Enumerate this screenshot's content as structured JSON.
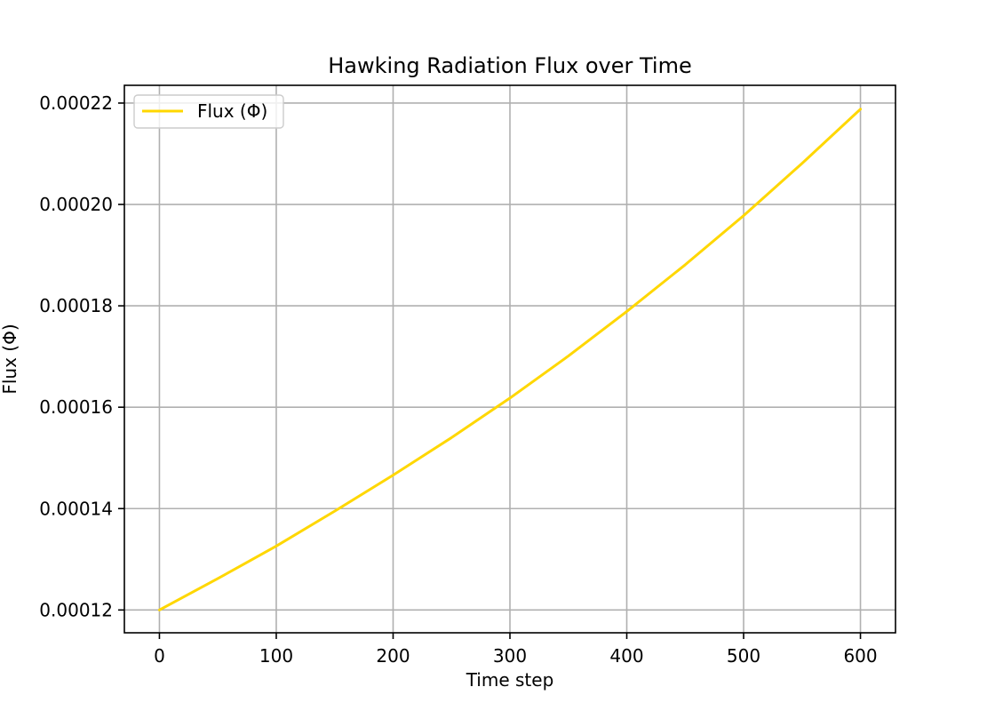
{
  "chart_data": {
    "type": "line",
    "title": "Hawking Radiation Flux over Time",
    "xlabel": "Time step",
    "ylabel": "Flux (Φ)",
    "xlim": [
      -30,
      630
    ],
    "ylim": [
      0.0001155,
      0.0002235
    ],
    "x_ticks": [
      0,
      100,
      200,
      300,
      400,
      500,
      600
    ],
    "x_tick_labels": [
      "0",
      "100",
      "200",
      "300",
      "400",
      "500",
      "600"
    ],
    "y_ticks": [
      0.00012,
      0.00014,
      0.00016,
      0.00018,
      0.0002,
      0.00022
    ],
    "y_tick_labels": [
      "0.00012",
      "0.00014",
      "0.00016",
      "0.00018",
      "0.00020",
      "0.00022"
    ],
    "grid": true,
    "legend_position": "top-left",
    "series": [
      {
        "name": "Flux (Φ)",
        "color": "#FFD700",
        "x": [
          0,
          50,
          100,
          150,
          200,
          250,
          300,
          350,
          400,
          450,
          500,
          550,
          600
        ],
        "y": [
          0.00012,
          0.0001262,
          0.0001326,
          0.0001395,
          0.0001466,
          0.000154,
          0.0001618,
          0.0001701,
          0.0001789,
          0.0001881,
          0.0001978,
          0.0002081,
          0.0002188
        ]
      }
    ]
  }
}
